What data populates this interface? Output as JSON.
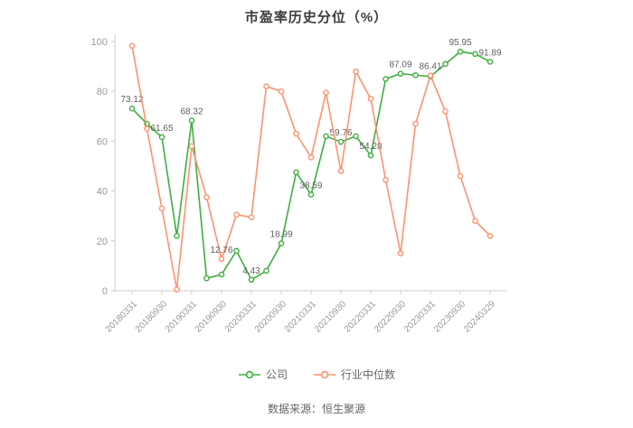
{
  "title": "市盈率历史分位（%）",
  "footer": {
    "source": "数据来源：恒生聚源"
  },
  "axis": {
    "label_color": "#999999",
    "line_color": "#cccccc",
    "data_label_color": "#5f5f5f"
  },
  "chart_data": {
    "type": "line",
    "title": "市盈率历史分位（%）",
    "xlabel": "",
    "ylabel": "",
    "ylim": [
      0,
      100
    ],
    "yticks": [
      0,
      20,
      40,
      60,
      80,
      100
    ],
    "grid": false,
    "legend_position": "bottom",
    "x": [
      "20180331",
      "20180630",
      "20180930",
      "20181231",
      "20190331",
      "20190630",
      "20190930",
      "20191231",
      "20200331",
      "20200630",
      "20200930",
      "20201231",
      "20210331",
      "20210630",
      "20210930",
      "20211231",
      "20220331",
      "20220630",
      "20220930",
      "20221231",
      "20230331",
      "20230630",
      "20230930",
      "20231231",
      "20240329"
    ],
    "x_axis_tick_labels": [
      "20180331",
      "20180930",
      "20190331",
      "20190930",
      "20200331",
      "20200930",
      "20210331",
      "20210930",
      "20220331",
      "20220930",
      "20230331",
      "20230930",
      "20240329"
    ],
    "series": [
      {
        "name": "公司",
        "color": "#3fae3f",
        "marker": "empty-circle",
        "values": [
          73.12,
          67.0,
          61.65,
          22.0,
          68.32,
          5.0,
          6.5,
          16.0,
          4.43,
          8.0,
          18.99,
          47.5,
          38.59,
          62.0,
          59.76,
          62.0,
          54.28,
          85.0,
          87.09,
          86.5,
          86.0,
          91.0,
          95.95,
          95.0,
          91.89
        ],
        "labels": {
          "0": "73.12",
          "2": "61.65",
          "4": "68.32",
          "8": "4.43",
          "10": "18.99",
          "12": "38.59",
          "14": "59.76",
          "16": "54.28",
          "18": "87.09",
          "22": "95.95",
          "24": "91.89"
        }
      },
      {
        "name": "行业中位数",
        "color": "#ff9270",
        "marker": "empty-circle",
        "values": [
          98.3,
          65.0,
          33.0,
          0.5,
          58.0,
          37.5,
          12.76,
          30.5,
          29.5,
          82.0,
          80.0,
          63.0,
          53.5,
          79.5,
          48.0,
          88.0,
          77.0,
          44.5,
          15.0,
          67.0,
          86.41,
          72.0,
          46.0,
          28.0,
          22.0
        ],
        "labels": {
          "6": "12.76",
          "20": "86.41"
        }
      }
    ]
  }
}
